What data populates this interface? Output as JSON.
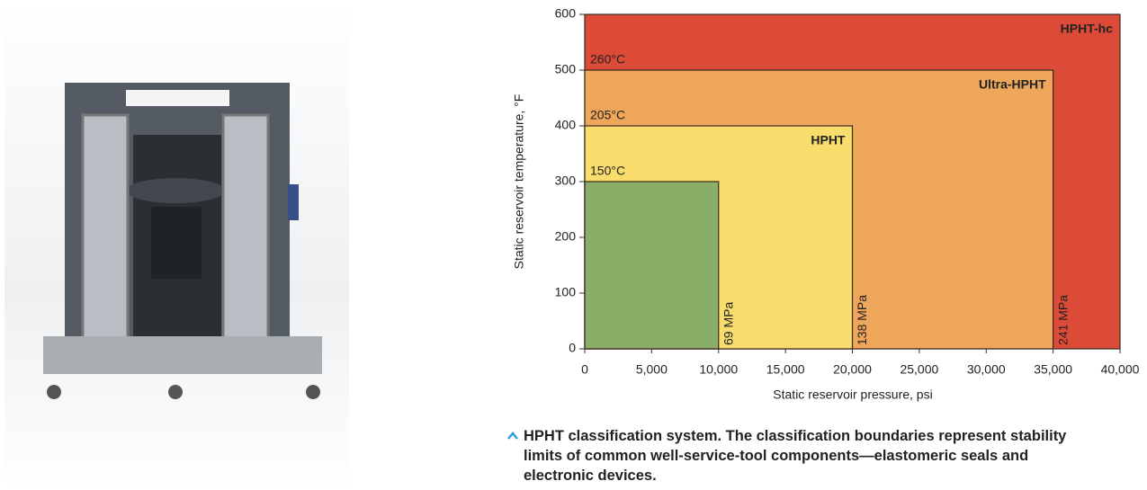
{
  "chart_data": {
    "type": "region",
    "x_label": "Static reservoir pressure, psi",
    "y_label": "Static reservoir temperature, °F",
    "xlim": [
      0,
      40000
    ],
    "xticks": [
      0,
      {
        "value": 5000,
        "label": "5,000"
      },
      {
        "value": 10000,
        "label": "10,000"
      },
      {
        "value": 15000,
        "label": "15,000"
      },
      {
        "value": 20000,
        "label": "20,000"
      },
      {
        "value": 25000,
        "label": "25,000"
      },
      {
        "value": 30000,
        "label": "30,000"
      },
      {
        "value": 35000,
        "label": "35,000"
      },
      {
        "value": 40000,
        "label": "40,000"
      }
    ],
    "ylim": [
      0,
      600
    ],
    "yticks": [
      0,
      100,
      200,
      300,
      400,
      500,
      600
    ],
    "regions": [
      {
        "name": "HPHT-hc",
        "color": "#dc4a38",
        "x": 40000,
        "y": 600
      },
      {
        "name": "Ultra-HPHT",
        "color": "#eea65a",
        "x": 35000,
        "y": 500,
        "temp_label": "260°C",
        "pressure_label": "241 MPa"
      },
      {
        "name": "HPHT",
        "color": "#f8dc6c",
        "x": 20000,
        "y": 400,
        "temp_label": "205°C",
        "pressure_label": "138 MPa"
      },
      {
        "color": "#8aae68",
        "x": 10000,
        "y": 300,
        "temp_label": "150°C",
        "pressure_label": "69 MPa"
      }
    ],
    "caption": "HPHT classification system. The classification boundaries represent stability limits of common well-service-tool components—elastomeric seals and electronic devices."
  }
}
